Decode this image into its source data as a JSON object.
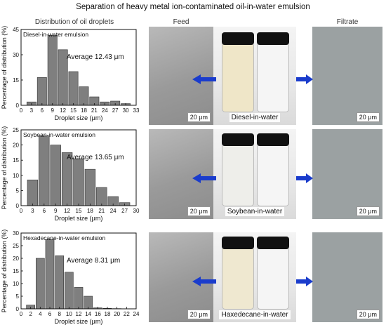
{
  "title": "Separation of heavy metal ion-contaminated oil-in-water emulsion",
  "column_headers": {
    "distribution": "Distribution of oil droplets",
    "feed": "Feed",
    "filtrate": "Filtrate"
  },
  "scale_bar": "20 μm",
  "colors": {
    "bar_fill": "#7f7f7f",
    "bar_stroke": "#333333",
    "arrow": "#1a3ccc"
  },
  "chart_data": [
    {
      "type": "bar",
      "title": "Diesel-in-water emulsion",
      "annotation": "Average 12.43 μm",
      "xlabel": "Droplet size (μm)",
      "ylabel": "Percentage of distribution (%)",
      "xlim": [
        0,
        33
      ],
      "ylim": [
        0,
        45
      ],
      "x_ticks": [
        0,
        3,
        6,
        9,
        12,
        15,
        18,
        21,
        24,
        27,
        30,
        33
      ],
      "y_ticks": [
        0,
        15,
        30,
        45
      ],
      "bar_width": 3,
      "x": [
        3,
        6,
        9,
        12,
        15,
        18,
        21,
        24,
        27,
        30
      ],
      "values": [
        2,
        16.5,
        41.5,
        33,
        20,
        11,
        5,
        2,
        2.5,
        1
      ]
    },
    {
      "type": "bar",
      "title": "Soybean-in-water emulsion",
      "annotation": "Average 13.65 μm",
      "xlabel": "Droplet size (μm)",
      "ylabel": "Percentage of distribution (%)",
      "xlim": [
        0,
        30
      ],
      "ylim": [
        0,
        25
      ],
      "x_ticks": [
        0,
        3,
        6,
        9,
        12,
        15,
        18,
        21,
        24,
        27,
        30
      ],
      "y_ticks": [
        0,
        5,
        10,
        15,
        20,
        25
      ],
      "bar_width": 3,
      "x": [
        3,
        6,
        9,
        12,
        15,
        18,
        21,
        24,
        27
      ],
      "values": [
        8.5,
        23,
        20,
        17.5,
        15.5,
        12,
        6,
        3,
        1
      ]
    },
    {
      "type": "bar",
      "title": "Hexadecane-in-water emulsion",
      "annotation": "Average 8.31 μm",
      "xlabel": "Droplet size (μm)",
      "ylabel": "Percentage of distribution (%)",
      "xlim": [
        0,
        24
      ],
      "ylim": [
        0,
        30
      ],
      "x_ticks": [
        0,
        2,
        4,
        6,
        8,
        10,
        12,
        14,
        16,
        18,
        20,
        22,
        24
      ],
      "y_ticks": [
        0,
        5,
        10,
        15,
        20,
        25,
        30
      ],
      "bar_width": 2,
      "x": [
        2,
        4,
        6,
        8,
        10,
        12,
        14,
        16,
        18,
        20
      ],
      "values": [
        1.5,
        20,
        27.5,
        21,
        14.5,
        8.5,
        5,
        0.4,
        0.2,
        0.1
      ]
    }
  ],
  "rows": [
    {
      "caption": "Diesel-in-water"
    },
    {
      "caption": "Soybean-in-water"
    },
    {
      "caption": "Haxedecane-in-water"
    }
  ]
}
